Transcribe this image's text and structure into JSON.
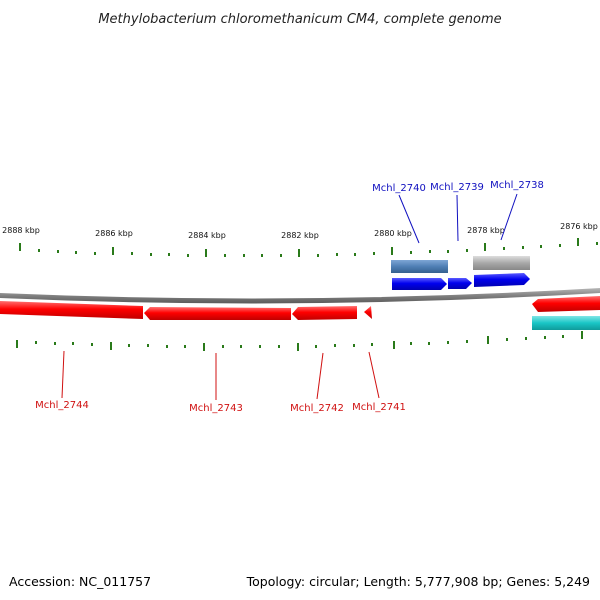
{
  "title": "Methylobacterium chloromethanicum CM4, complete genome",
  "footer": {
    "accession": "Accession: NC_011757",
    "summary": "Topology: circular; Length: 5,777,908 bp; Genes: 5,249"
  },
  "colors": {
    "backbone": "#808080",
    "tick": "#2a7a1a",
    "reverse_gene": "#ff0000",
    "forward_gene": "#0000ee",
    "forward_label": "#1010c0",
    "reverse_label": "#d01010",
    "steelblue_feature": "#4f7fb5",
    "grey_feature": "#a8a8a8",
    "cyan_feature": "#19c6c6"
  },
  "kbp_labels": [
    {
      "text": "2888 kbp"
    },
    {
      "text": "2886 kbp"
    },
    {
      "text": "2884 kbp"
    },
    {
      "text": "2882 kbp"
    },
    {
      "text": "2880 kbp"
    },
    {
      "text": "2878 kbp"
    },
    {
      "text": "2876 kbp"
    }
  ],
  "genes": {
    "forward": [
      {
        "label": "Mchl_2740"
      },
      {
        "label": "Mchl_2739"
      },
      {
        "label": "Mchl_2738"
      }
    ],
    "reverse": [
      {
        "label": "Mchl_2744"
      },
      {
        "label": "Mchl_2743"
      },
      {
        "label": "Mchl_2742"
      },
      {
        "label": "Mchl_2741"
      }
    ]
  }
}
